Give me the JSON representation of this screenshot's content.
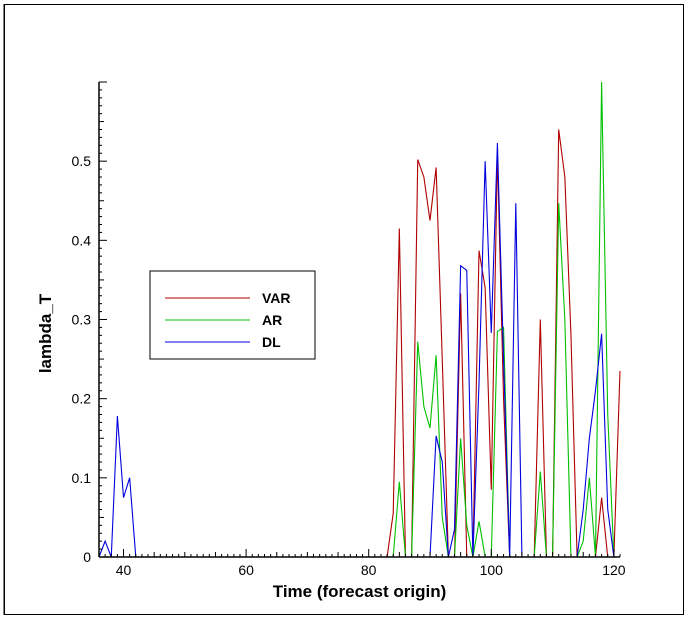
{
  "chart_data": {
    "type": "line",
    "xlabel": "Time (forecast origin)",
    "ylabel": "lambda_T",
    "xlim": [
      36,
      121
    ],
    "ylim": [
      0,
      0.6
    ],
    "xticks": [
      "40",
      "60",
      "80",
      "100",
      "120"
    ],
    "yticks": [
      "0",
      "0.1",
      "0.2",
      "0.3",
      "0.4",
      "0.5"
    ],
    "legend_position": "left-middle",
    "grid": false,
    "series": [
      {
        "name": "VAR",
        "color": "#b00000",
        "points": [
          [
            83,
            0
          ],
          [
            84,
            0.055
          ],
          [
            85,
            0.415
          ],
          [
            86,
            0
          ],
          [
            87,
            0
          ],
          [
            88,
            0.502
          ],
          [
            89,
            0.48
          ],
          [
            90,
            0.425
          ],
          [
            91,
            0.492
          ],
          [
            92,
            0.25
          ],
          [
            93,
            0
          ],
          [
            94,
            0
          ],
          [
            95,
            0.333
          ],
          [
            96,
            0
          ],
          [
            97,
            0
          ],
          [
            98,
            0.387
          ],
          [
            99,
            0.34
          ],
          [
            100,
            0.085
          ],
          [
            101,
            0.51
          ],
          [
            102,
            0.2
          ],
          [
            103,
            0
          ],
          [
            104,
            0
          ],
          [
            105,
            0
          ],
          [
            106,
            0
          ],
          [
            107,
            0
          ],
          [
            108,
            0.3
          ],
          [
            109,
            0
          ],
          [
            110,
            0
          ],
          [
            111,
            0.54
          ],
          [
            112,
            0.48
          ],
          [
            113,
            0.28
          ],
          [
            114,
            0
          ],
          [
            115,
            0
          ],
          [
            116,
            0
          ],
          [
            117,
            0
          ],
          [
            118,
            0.075
          ],
          [
            119,
            0
          ],
          [
            120,
            0
          ],
          [
            121,
            0.235
          ]
        ]
      },
      {
        "name": "AR",
        "color": "#00c000",
        "points": [
          [
            84,
            0
          ],
          [
            85,
            0.095
          ],
          [
            86,
            0
          ],
          [
            87,
            0
          ],
          [
            88,
            0.272
          ],
          [
            89,
            0.19
          ],
          [
            90,
            0.163
          ],
          [
            91,
            0.255
          ],
          [
            92,
            0.05
          ],
          [
            93,
            0
          ],
          [
            94,
            0
          ],
          [
            95,
            0.15
          ],
          [
            96,
            0.04
          ],
          [
            97,
            0
          ],
          [
            98,
            0.045
          ],
          [
            99,
            0
          ],
          [
            100,
            0
          ],
          [
            101,
            0.285
          ],
          [
            102,
            0.29
          ],
          [
            103,
            0
          ],
          [
            104,
            0
          ],
          [
            105,
            0
          ],
          [
            106,
            0
          ],
          [
            107,
            0
          ],
          [
            108,
            0.108
          ],
          [
            109,
            0
          ],
          [
            110,
            0
          ],
          [
            111,
            0.447
          ],
          [
            112,
            0.3
          ],
          [
            113,
            0
          ],
          [
            114,
            0
          ],
          [
            115,
            0.02
          ],
          [
            116,
            0.1
          ],
          [
            117,
            0
          ],
          [
            118,
            0.6
          ],
          [
            119,
            0.18
          ],
          [
            120,
            0
          ]
        ]
      },
      {
        "name": "DL",
        "color": "#0000e0",
        "points": [
          [
            36,
            0
          ],
          [
            37,
            0.02
          ],
          [
            38,
            0
          ],
          [
            39,
            0.178
          ],
          [
            40,
            0.075
          ],
          [
            41,
            0.1
          ],
          [
            42,
            0
          ],
          [
            90,
            0
          ],
          [
            91,
            0.153
          ],
          [
            92,
            0.12
          ],
          [
            93,
            0
          ],
          [
            94,
            0.035
          ],
          [
            95,
            0.368
          ],
          [
            96,
            0.362
          ],
          [
            97,
            0
          ],
          [
            98,
            0.22
          ],
          [
            99,
            0.5
          ],
          [
            100,
            0.283
          ],
          [
            101,
            0.523
          ],
          [
            102,
            0.25
          ],
          [
            103,
            0
          ],
          [
            104,
            0.447
          ],
          [
            105,
            0
          ],
          [
            106,
            0
          ],
          [
            112,
            0
          ],
          [
            113,
            0
          ],
          [
            114,
            0
          ],
          [
            115,
            0.06
          ],
          [
            116,
            0.15
          ],
          [
            117,
            0.21
          ],
          [
            118,
            0.282
          ],
          [
            119,
            0.06
          ],
          [
            120,
            0
          ]
        ]
      }
    ]
  }
}
